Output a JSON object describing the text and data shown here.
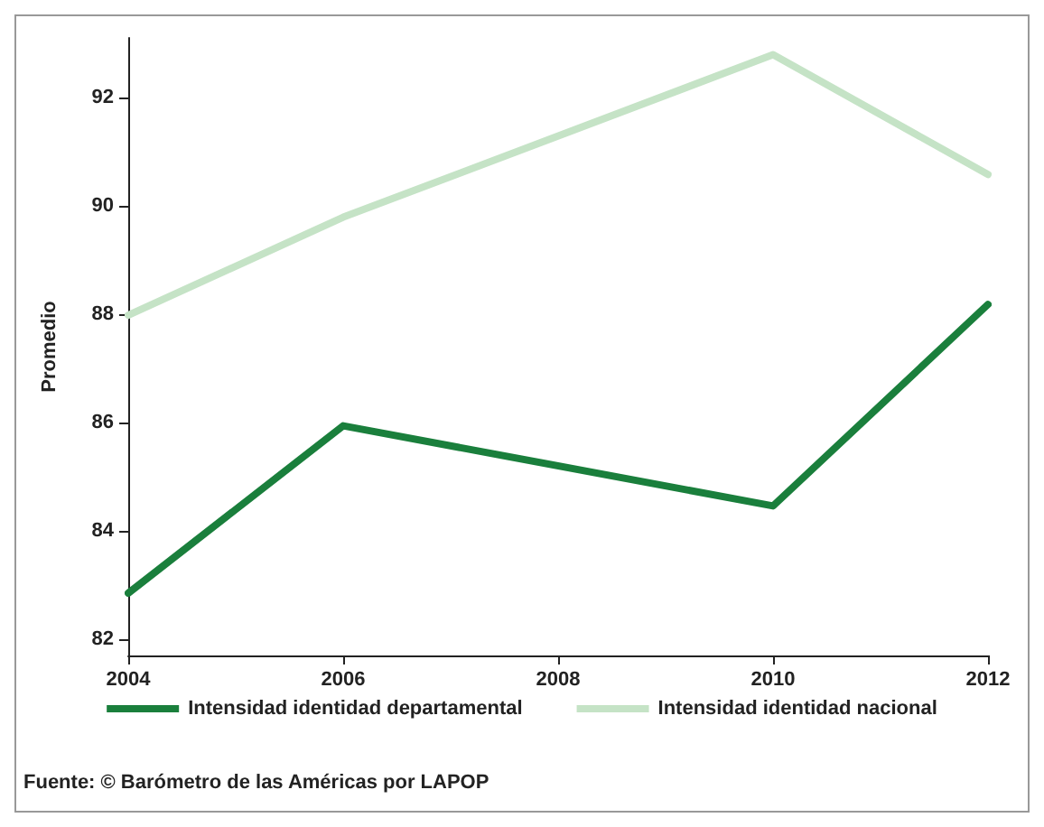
{
  "chart_data": {
    "type": "line",
    "x": [
      2004,
      2006,
      2010,
      2012
    ],
    "xlim": [
      2004,
      2012
    ],
    "xticks": [
      2004,
      2006,
      2008,
      2010,
      2012
    ],
    "ylim": [
      81.7,
      93.1
    ],
    "yticks": [
      82,
      84,
      86,
      88,
      90,
      92
    ],
    "ylabel": "Promedio",
    "grid": false,
    "legend": "bottom",
    "marker": "none",
    "line_style": "solid",
    "series": [
      {
        "name": "Intensidad identidad departamental",
        "color": "#1a7f3c",
        "values": [
          82.85,
          85.94,
          84.46,
          88.18
        ]
      },
      {
        "name": "Intensidad identidad nacional",
        "color": "#c5e3c6",
        "values": [
          87.98,
          89.79,
          92.79,
          90.58
        ]
      }
    ],
    "annotations": [
      "Fuente: © Barómetro de las Américas por LAPOP"
    ]
  }
}
